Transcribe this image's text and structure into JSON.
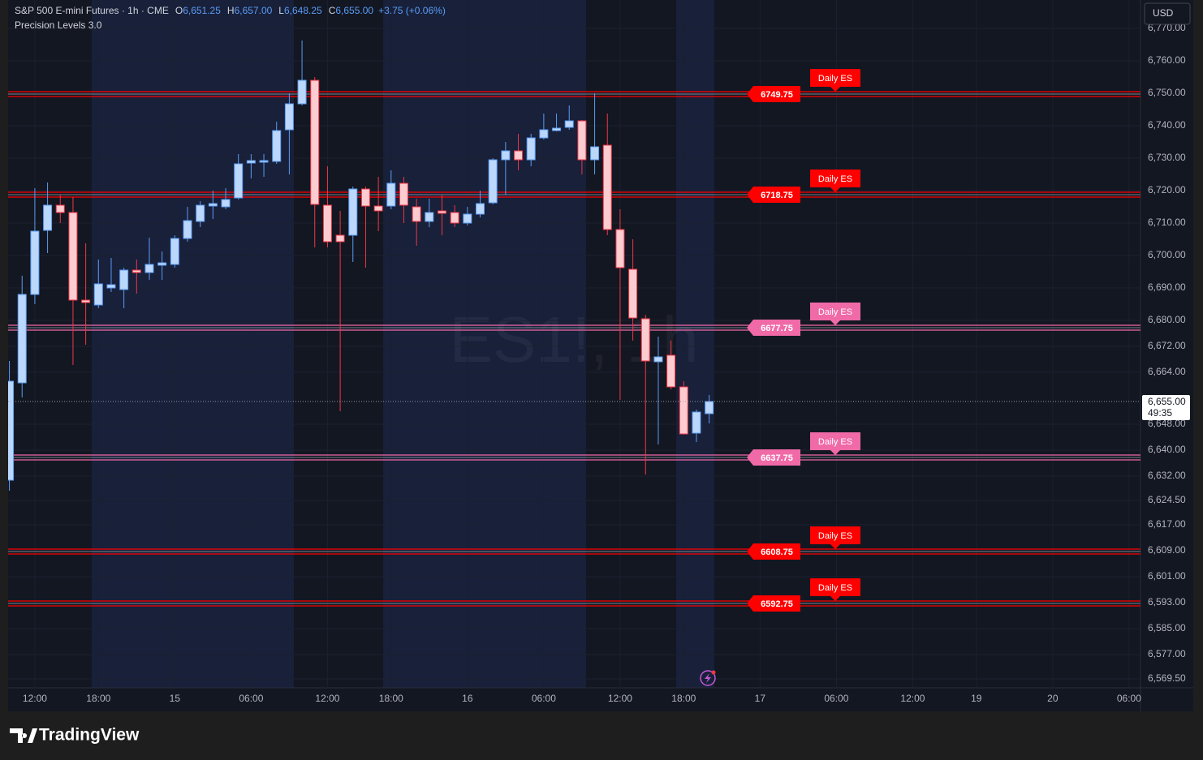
{
  "chart_data": {
    "type": "candlestick",
    "title": "S&P 500 E-mini Futures · 1h · CME",
    "legend": [
      {
        "name": "O",
        "value": 6651.25,
        "label": "6,651.25"
      },
      {
        "name": "H",
        "value": 6657,
        "label": "6,657.00"
      },
      {
        "name": "L",
        "value": 6648.25,
        "label": "6,648.25"
      },
      {
        "name": "C",
        "value": 6655,
        "label": "6,655.00"
      }
    ],
    "change": {
      "value": 3.75,
      "label": "+3.75 (+0.06%)"
    },
    "indicator": "Precision Levels 3.0",
    "watermark": "ES1!, 1h",
    "currency": "USD",
    "brand": "TradingView",
    "x": [
      0,
      1,
      2,
      3,
      4,
      5,
      6,
      7,
      8,
      9,
      10,
      11,
      12,
      13,
      14,
      15,
      16,
      17,
      18,
      19,
      20,
      21,
      22,
      23,
      24,
      25,
      26,
      27,
      28,
      29,
      30,
      31,
      32,
      33,
      34,
      35,
      36,
      37,
      38,
      39,
      40,
      41,
      42,
      43,
      44,
      45,
      46,
      47,
      48,
      49,
      50,
      51,
      52,
      53,
      54,
      55
    ],
    "open": [
      6630.75,
      6660.75,
      6688,
      6707.75,
      6715.5,
      6713.25,
      6686.25,
      6684.75,
      6690,
      6689.5,
      6695.5,
      6694.75,
      6697,
      6697.25,
      6705.25,
      6710.5,
      6715.25,
      6715,
      6717.75,
      6728.5,
      6728.75,
      6729,
      6738.75,
      6746.75,
      6754,
      6715.5,
      6706.25,
      6706.25,
      6720.5,
      6715.25,
      6715.25,
      6722.25,
      6715,
      6710.5,
      6713.75,
      6713.25,
      6710,
      6712.75,
      6716.25,
      6729.5,
      6732.25,
      6729.5,
      6736.25,
      6738.5,
      6739.5,
      6741.5,
      6729.5,
      6734,
      6708,
      6695.75,
      6680.5,
      6667.25,
      6669.25,
      6659.5,
      6645.25,
      6651.25
    ],
    "high": [
      6667.5,
      6693.75,
      6720.75,
      6722.5,
      6718.75,
      6718,
      6703.75,
      6698.75,
      6699.25,
      6696.25,
      6698.75,
      6705.5,
      6701.25,
      6706.25,
      6715,
      6716.75,
      6720,
      6720.75,
      6731.25,
      6731.25,
      6731.25,
      6741.25,
      6750,
      6766.25,
      6755,
      6727.5,
      6713.75,
      6721.25,
      6721.25,
      6724.25,
      6726.25,
      6724.25,
      6717.5,
      6717.5,
      6718.75,
      6715.5,
      6715,
      6720,
      6730,
      6735,
      6737.5,
      6737.5,
      6743.75,
      6743.75,
      6746.25,
      6741.75,
      6750,
      6743.75,
      6714.25,
      6705,
      6681.75,
      6675,
      6673.75,
      6661.25,
      6652.5,
      6657
    ],
    "low": [
      6627.5,
      6656.25,
      6685,
      6700.75,
      6710,
      6666.25,
      6672.5,
      6683.75,
      6688.75,
      6683.75,
      6688.25,
      6692.5,
      6692.5,
      6696.25,
      6704.25,
      6708.75,
      6711.25,
      6714.25,
      6717.25,
      6723.75,
      6724.25,
      6728.25,
      6725,
      6746.25,
      6702.5,
      6702.5,
      6652,
      6698,
      6696.25,
      6707.5,
      6714.25,
      6710,
      6703,
      6708.75,
      6706.25,
      6708.75,
      6709.25,
      6711.75,
      6715.75,
      6718.75,
      6726.25,
      6727.5,
      6735.75,
      6738.25,
      6738.75,
      6725,
      6725,
      6706.25,
      6655.5,
      6673.75,
      6632.5,
      6641.75,
      6658.75,
      6644.75,
      6642.5,
      6648.25
    ],
    "close": [
      6661.25,
      6688,
      6707.5,
      6715.5,
      6713.25,
      6686.25,
      6685.5,
      6691.25,
      6691,
      6695.5,
      6694.75,
      6697.25,
      6697.75,
      6705.25,
      6710.75,
      6715.5,
      6716,
      6717.25,
      6728.25,
      6729.25,
      6729.25,
      6738.5,
      6746.75,
      6754,
      6715.75,
      6704.25,
      6704.25,
      6720.5,
      6715.25,
      6713.75,
      6722.25,
      6715.5,
      6710.5,
      6713.25,
      6713,
      6710,
      6712.75,
      6716,
      6729.5,
      6732.25,
      6729.5,
      6736.25,
      6738.75,
      6739.25,
      6741.5,
      6729.5,
      6733.5,
      6708,
      6696.25,
      6680.75,
      6667.5,
      6668.75,
      6659.5,
      6645,
      6651.75,
      6655
    ],
    "up_color": "#bbd7fb",
    "up_border": "#5b9cf6",
    "down_color": "#fcccd0",
    "down_border": "#f23645",
    "xlim": [
      -0.1,
      88.9
    ],
    "xticks": [
      {
        "value": 2,
        "label": "12:00"
      },
      {
        "value": 7,
        "label": "18:00"
      },
      {
        "value": 13,
        "label": "15"
      },
      {
        "value": 19,
        "label": "06:00"
      },
      {
        "value": 25,
        "label": "12:00"
      },
      {
        "value": 30,
        "label": "18:00"
      },
      {
        "value": 36,
        "label": "16"
      },
      {
        "value": 42,
        "label": "06:00"
      },
      {
        "value": 48,
        "label": "12:00"
      },
      {
        "value": 53,
        "label": "18:00"
      },
      {
        "value": 59,
        "label": "17"
      },
      {
        "value": 65,
        "label": "06:00"
      },
      {
        "value": 71,
        "label": "12:00"
      },
      {
        "value": 76,
        "label": "19"
      },
      {
        "value": 82,
        "label": "20"
      },
      {
        "value": 88,
        "label": "06:00"
      }
    ],
    "ylim": [
      6566.75,
      6778.75
    ],
    "yticks": [
      {
        "value": 6770,
        "label": "6,770.00"
      },
      {
        "value": 6760,
        "label": "6,760.00"
      },
      {
        "value": 6750,
        "label": "6,750.00"
      },
      {
        "value": 6740,
        "label": "6,740.00"
      },
      {
        "value": 6730,
        "label": "6,730.00"
      },
      {
        "value": 6720,
        "label": "6,720.00"
      },
      {
        "value": 6710,
        "label": "6,710.00"
      },
      {
        "value": 6700,
        "label": "6,700.00"
      },
      {
        "value": 6690,
        "label": "6,690.00"
      },
      {
        "value": 6680,
        "label": "6,680.00"
      },
      {
        "value": 6672,
        "label": "6,672.00"
      },
      {
        "value": 6664,
        "label": "6,664.00"
      },
      {
        "value": 6648,
        "label": "6,648.00"
      },
      {
        "value": 6640,
        "label": "6,640.00"
      },
      {
        "value": 6632,
        "label": "6,632.00"
      },
      {
        "value": 6624.5,
        "label": "6,624.50"
      },
      {
        "value": 6617,
        "label": "6,617.00"
      },
      {
        "value": 6609,
        "label": "6,609.00"
      },
      {
        "value": 6601,
        "label": "6,601.00"
      },
      {
        "value": 6593,
        "label": "6,593.00"
      },
      {
        "value": 6585,
        "label": "6,585.00"
      },
      {
        "value": 6577,
        "label": "6,577.00"
      },
      {
        "value": 6569.5,
        "label": "6,569.50"
      }
    ],
    "grid": true,
    "levels": [
      {
        "value": 6749.75,
        "label": "Daily ES",
        "color": "#ff0000"
      },
      {
        "value": 6718.75,
        "label": "Daily ES",
        "color": "#ff0000"
      },
      {
        "value": 6677.75,
        "label": "Daily ES",
        "color": "#f06aa8"
      },
      {
        "value": 6637.75,
        "label": "Daily ES",
        "color": "#f06aa8"
      },
      {
        "value": 6608.75,
        "label": "Daily ES",
        "color": "#ff0000"
      },
      {
        "value": 6592.75,
        "label": "Daily ES",
        "color": "#ff0000"
      }
    ],
    "last_price": {
      "value": 6655,
      "label": "6,655.00"
    },
    "countdown": "49:35"
  }
}
